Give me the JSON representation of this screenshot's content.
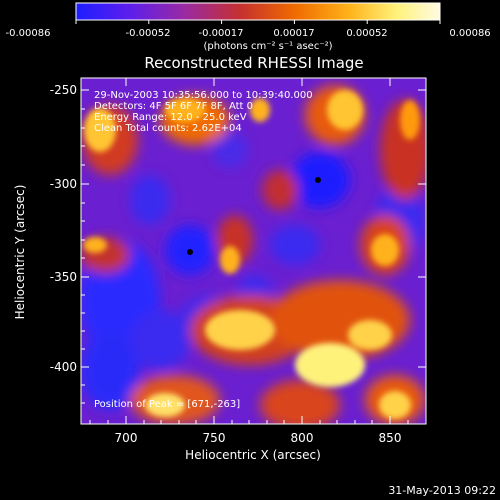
{
  "colorbar": {
    "tick_labels": [
      "-0.00086",
      "-0.00052",
      "-0.00017",
      "0.00017",
      "0.00052",
      "0.00086"
    ],
    "unit_label": "(photons cm⁻² s⁻¹ asec⁻²)",
    "colormap": [
      "#1e1eff",
      "#5a1eee",
      "#9a2aa2",
      "#c53030",
      "#ef6a00",
      "#ffb21a",
      "#fff27a",
      "#fffbe2"
    ]
  },
  "image": {
    "title": "Reconstructed RHESSI Image",
    "info_lines": [
      "29-Nov-2003 10:35:56.000 to 10:39:40.000",
      "Detectors: 4F 5F 6F 7F 8F, Att 0",
      "Energy Range: 12.0 - 25.0 keV",
      "Clean   Total counts: 2.62E+04"
    ],
    "peak_label": "Position of Peak = [671,-263]",
    "x_label": "Heliocentric X (arcsec)",
    "y_label": "Heliocentric Y (arcsec)",
    "x_ticks": [
      "700",
      "750",
      "800",
      "850"
    ],
    "y_ticks": [
      "-250",
      "-300",
      "-350",
      "-400"
    ],
    "x_range_arcsec": [
      671,
      865
    ],
    "y_range_arcsec": [
      -433,
      -240
    ]
  },
  "footer": {
    "timestamp": "31-May-2013 09:22"
  }
}
